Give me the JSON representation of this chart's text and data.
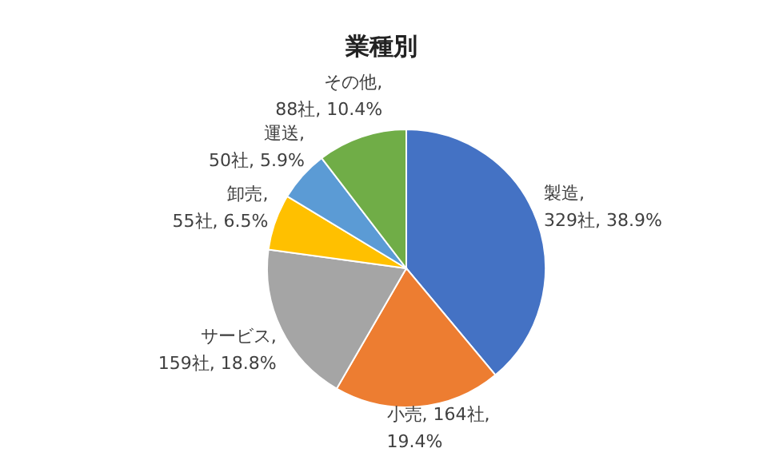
{
  "chart_data": {
    "type": "pie",
    "title": "業種別",
    "categories": [
      "製造",
      "小売",
      "サービス",
      "卸売",
      "運送",
      "その他"
    ],
    "values": [
      329,
      164,
      159,
      55,
      50,
      88
    ],
    "colors": [
      "#4472c4",
      "#ed7d31",
      "#a5a5a5",
      "#ffc000",
      "#5b9bd5",
      "#70ad47"
    ],
    "value_labels": [
      ",\n329社, 38.9%",
      ", 164社,\n19.4%",
      ",\n159社, 18.8%",
      ",\n55社, 6.5%",
      ",\n50社, 5.9%",
      ",\n88社, 10.4%"
    ],
    "legend": false
  }
}
